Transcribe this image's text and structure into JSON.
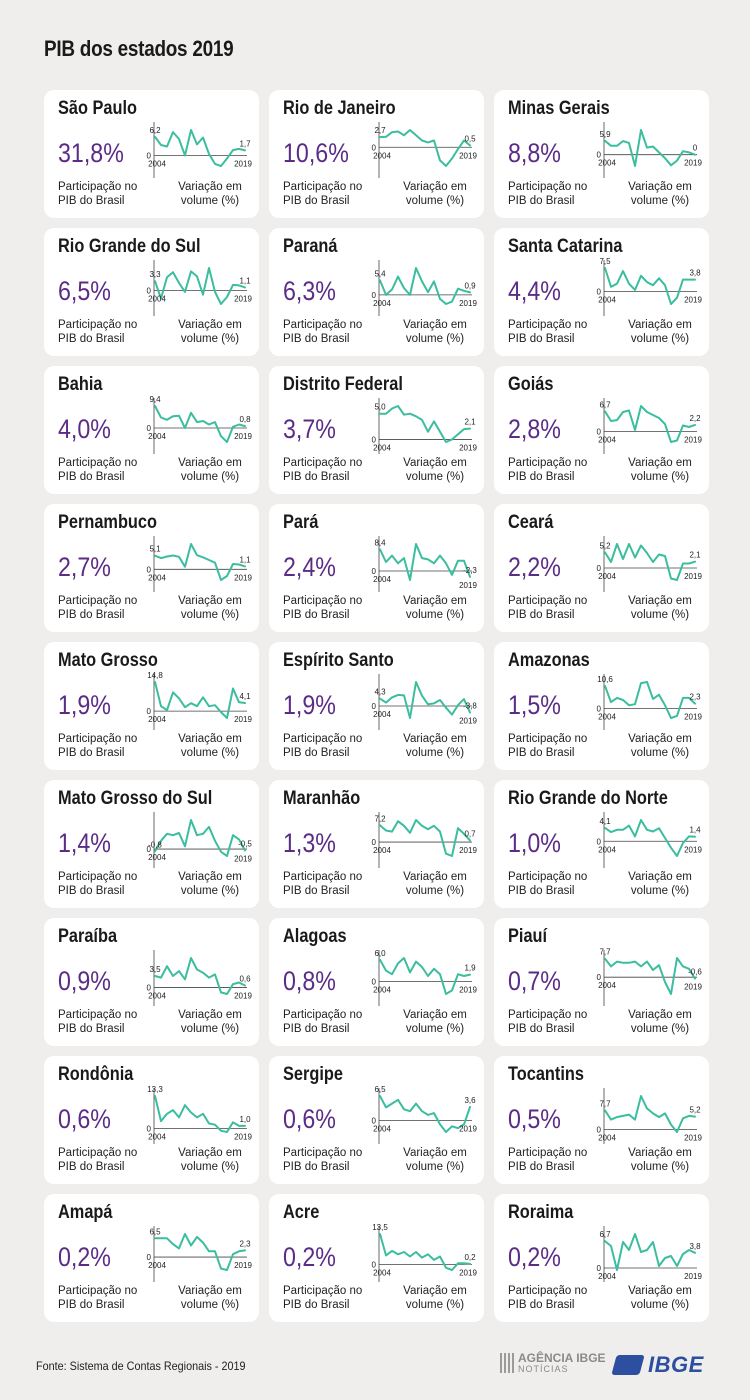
{
  "title": "PIB dos estados 2019",
  "labels": {
    "share_line1": "Participação no",
    "share_line2": "PIB do Brasil",
    "var_line1": "Variação em",
    "var_line2": "volume (%)",
    "year_start": "2004",
    "year_end": "2019",
    "zero": "0"
  },
  "colors": {
    "accent_purple": "#5b2c86",
    "line_teal": "#3bbd9f",
    "card_bg": "#ffffff",
    "page_bg": "#efeeec"
  },
  "footer": {
    "source": "Fonte: Sistema de Contas Regionais - 2019",
    "agencia_line1": "AGÊNCIA IBGE",
    "agencia_line2": "NOTÍCIAS",
    "ibge": "IBGE"
  },
  "chart_data": [
    {
      "type": "line",
      "state": "São Paulo",
      "share": "31,8%",
      "first_label": "6,2",
      "last_label": "1,7",
      "x": [
        2004,
        2005,
        2006,
        2007,
        2008,
        2009,
        2010,
        2011,
        2012,
        2013,
        2014,
        2015,
        2016,
        2017,
        2018,
        2019
      ],
      "values": [
        6.2,
        3.5,
        3.0,
        7.8,
        5.5,
        0.0,
        8.5,
        3.7,
        6.0,
        0.5,
        -2.8,
        -3.5,
        -1.0,
        1.8,
        2.2,
        1.7
      ]
    },
    {
      "type": "line",
      "state": "Rio de Janeiro",
      "share": "10,6%",
      "first_label": "2,7",
      "last_label": "0,5",
      "x": [
        2004,
        2005,
        2006,
        2007,
        2008,
        2009,
        2010,
        2011,
        2012,
        2013,
        2014,
        2015,
        2016,
        2017,
        2018,
        2019
      ],
      "values": [
        2.7,
        2.8,
        4.0,
        4.2,
        3.2,
        4.6,
        3.2,
        1.8,
        1.3,
        1.8,
        -3.5,
        -5.0,
        -3.0,
        -0.5,
        1.8,
        0.5
      ]
    },
    {
      "type": "line",
      "state": "Minas Gerais",
      "share": "8,8%",
      "first_label": "5,9",
      "last_label": "0",
      "x": [
        2004,
        2005,
        2006,
        2007,
        2008,
        2009,
        2010,
        2011,
        2012,
        2013,
        2014,
        2015,
        2016,
        2017,
        2018,
        2019
      ],
      "values": [
        5.9,
        3.8,
        3.8,
        5.8,
        5.0,
        -4.8,
        10.5,
        3.0,
        3.5,
        1.0,
        -1.5,
        -4.5,
        -2.5,
        1.5,
        1.0,
        0.0
      ]
    },
    {
      "type": "line",
      "state": "Rio Grande do Sul",
      "share": "6,5%",
      "first_label": "3,3",
      "last_label": "1,1",
      "x": [
        2004,
        2005,
        2006,
        2007,
        2008,
        2009,
        2010,
        2011,
        2012,
        2013,
        2014,
        2015,
        2016,
        2017,
        2018,
        2019
      ],
      "values": [
        3.3,
        -2.8,
        4.7,
        6.5,
        2.7,
        -0.5,
        6.8,
        5.0,
        -1.5,
        8.0,
        -0.5,
        -4.8,
        -2.3,
        2.0,
        1.8,
        1.1
      ]
    },
    {
      "type": "line",
      "state": "Paraná",
      "share": "6,3%",
      "first_label": "5,4",
      "last_label": "0,9",
      "x": [
        2004,
        2005,
        2006,
        2007,
        2008,
        2009,
        2010,
        2011,
        2012,
        2013,
        2014,
        2015,
        2016,
        2017,
        2018,
        2019
      ],
      "values": [
        5.4,
        0.0,
        2.0,
        6.8,
        2.5,
        0.0,
        10.0,
        5.0,
        1.0,
        5.0,
        -1.5,
        -3.4,
        -2.5,
        2.3,
        1.5,
        0.9
      ]
    },
    {
      "type": "line",
      "state": "Santa Catarina",
      "share": "4,4%",
      "first_label": "7,5",
      "last_label": "3,8",
      "x": [
        2004,
        2005,
        2006,
        2007,
        2008,
        2009,
        2010,
        2011,
        2012,
        2013,
        2014,
        2015,
        2016,
        2017,
        2018,
        2019
      ],
      "values": [
        7.5,
        1.5,
        2.5,
        6.5,
        2.5,
        0.5,
        5.0,
        3.0,
        2.0,
        4.2,
        2.0,
        -4.0,
        -2.0,
        3.8,
        3.8,
        3.8
      ]
    },
    {
      "type": "line",
      "state": "Bahia",
      "share": "4,0%",
      "first_label": "9,4",
      "last_label": "0,8",
      "x": [
        2004,
        2005,
        2006,
        2007,
        2008,
        2009,
        2010,
        2011,
        2012,
        2013,
        2014,
        2015,
        2016,
        2017,
        2018,
        2019
      ],
      "values": [
        9.4,
        4.5,
        3.5,
        5.0,
        5.2,
        0.0,
        6.5,
        2.5,
        3.0,
        1.5,
        2.5,
        -3.5,
        -6.0,
        0.5,
        1.5,
        0.8
      ]
    },
    {
      "type": "line",
      "state": "Distrito Federal",
      "share": "3,7%",
      "first_label": "5,0",
      "last_label": "2,1",
      "x": [
        2004,
        2005,
        2006,
        2007,
        2008,
        2009,
        2010,
        2011,
        2012,
        2013,
        2014,
        2015,
        2016,
        2017,
        2018,
        2019
      ],
      "values": [
        5.0,
        5.0,
        6.0,
        6.5,
        4.8,
        5.0,
        4.5,
        3.8,
        1.5,
        3.5,
        1.5,
        -0.5,
        0.0,
        1.0,
        2.0,
        2.1
      ]
    },
    {
      "type": "line",
      "state": "Goiás",
      "share": "2,8%",
      "first_label": "6,7",
      "last_label": "2,2",
      "x": [
        2004,
        2005,
        2006,
        2007,
        2008,
        2009,
        2010,
        2011,
        2012,
        2013,
        2014,
        2015,
        2016,
        2017,
        2018,
        2019
      ],
      "values": [
        6.7,
        3.5,
        3.8,
        6.5,
        7.0,
        0.5,
        8.5,
        6.5,
        5.5,
        4.5,
        2.5,
        -3.5,
        -3.0,
        2.0,
        1.5,
        2.2
      ]
    },
    {
      "type": "line",
      "state": "Pernambuco",
      "share": "2,7%",
      "first_label": "5,1",
      "last_label": "1,1",
      "x": [
        2004,
        2005,
        2006,
        2007,
        2008,
        2009,
        2010,
        2011,
        2012,
        2013,
        2014,
        2015,
        2016,
        2017,
        2018,
        2019
      ],
      "values": [
        5.1,
        4.2,
        4.8,
        5.2,
        4.7,
        1.0,
        9.5,
        5.3,
        4.5,
        3.5,
        2.5,
        -4.0,
        -2.5,
        2.0,
        1.8,
        1.1
      ]
    },
    {
      "type": "line",
      "state": "Pará",
      "share": "2,4%",
      "first_label": "8,4",
      "last_label": "-2,3",
      "x": [
        2004,
        2005,
        2006,
        2007,
        2008,
        2009,
        2010,
        2011,
        2012,
        2013,
        2014,
        2015,
        2016,
        2017,
        2018,
        2019
      ],
      "values": [
        8.4,
        3.5,
        6.0,
        3.0,
        5.0,
        -3.5,
        10.5,
        5.0,
        4.5,
        3.0,
        6.0,
        3.0,
        -1.5,
        4.0,
        4.0,
        -2.3
      ]
    },
    {
      "type": "line",
      "state": "Ceará",
      "share": "2,2%",
      "first_label": "5,2",
      "last_label": "2,1",
      "x": [
        2004,
        2005,
        2006,
        2007,
        2008,
        2009,
        2010,
        2011,
        2012,
        2013,
        2014,
        2015,
        2016,
        2017,
        2018,
        2019
      ],
      "values": [
        5.2,
        2.0,
        8.0,
        3.0,
        8.0,
        3.5,
        7.5,
        5.0,
        2.0,
        4.5,
        4.0,
        -3.5,
        -4.0,
        1.5,
        1.5,
        2.1
      ]
    },
    {
      "type": "line",
      "state": "Mato Grosso",
      "share": "1,9%",
      "first_label": "14,8",
      "last_label": "4,1",
      "x": [
        2004,
        2005,
        2006,
        2007,
        2008,
        2009,
        2010,
        2011,
        2012,
        2013,
        2014,
        2015,
        2016,
        2017,
        2018,
        2019
      ],
      "values": [
        14.8,
        2.5,
        0.5,
        9.5,
        6.5,
        2.0,
        4.0,
        2.5,
        7.0,
        2.5,
        3.0,
        -0.5,
        -3.5,
        11.5,
        4.5,
        4.1
      ]
    },
    {
      "type": "line",
      "state": "Espírito Santo",
      "share": "1,9%",
      "first_label": "4,3",
      "last_label": "-3,8",
      "x": [
        2004,
        2005,
        2006,
        2007,
        2008,
        2009,
        2010,
        2011,
        2012,
        2013,
        2014,
        2015,
        2016,
        2017,
        2018,
        2019
      ],
      "values": [
        4.3,
        2.0,
        5.0,
        6.5,
        6.2,
        -7.0,
        14.0,
        6.0,
        1.0,
        1.5,
        3.5,
        -1.0,
        -5.0,
        0.5,
        4.0,
        -3.8
      ]
    },
    {
      "type": "line",
      "state": "Amazonas",
      "share": "1,5%",
      "first_label": "10,6",
      "last_label": "2,3",
      "x": [
        2004,
        2005,
        2006,
        2007,
        2008,
        2009,
        2010,
        2011,
        2012,
        2013,
        2014,
        2015,
        2016,
        2017,
        2018,
        2019
      ],
      "values": [
        10.6,
        3.0,
        5.0,
        4.0,
        1.5,
        2.0,
        12.0,
        12.5,
        4.5,
        6.5,
        1.5,
        -4.5,
        -3.5,
        5.0,
        5.0,
        2.3
      ]
    },
    {
      "type": "line",
      "state": "Mato Grosso do Sul",
      "share": "1,4%",
      "first_label": "-0,8",
      "last_label": "-0,5",
      "x": [
        2004,
        2005,
        2006,
        2007,
        2008,
        2009,
        2010,
        2011,
        2012,
        2013,
        2014,
        2015,
        2016,
        2017,
        2018,
        2019
      ],
      "values": [
        -0.8,
        3.0,
        5.5,
        5.0,
        5.8,
        1.0,
        10.5,
        5.0,
        5.5,
        8.0,
        3.0,
        -1.0,
        -2.5,
        5.0,
        3.5,
        -0.5
      ]
    },
    {
      "type": "line",
      "state": "Maranhão",
      "share": "1,3%",
      "first_label": "7,2",
      "last_label": "0,7",
      "x": [
        2004,
        2005,
        2006,
        2007,
        2008,
        2009,
        2010,
        2011,
        2012,
        2013,
        2014,
        2015,
        2016,
        2017,
        2018,
        2019
      ],
      "values": [
        7.2,
        5.0,
        4.5,
        9.0,
        7.0,
        4.0,
        9.5,
        7.0,
        5.5,
        7.0,
        4.5,
        -5.0,
        -6.0,
        6.0,
        3.5,
        0.7
      ]
    },
    {
      "type": "line",
      "state": "Rio Grande do Norte",
      "share": "1,0%",
      "first_label": "4,1",
      "last_label": "1,4",
      "x": [
        2004,
        2005,
        2006,
        2007,
        2008,
        2009,
        2010,
        2011,
        2012,
        2013,
        2014,
        2015,
        2016,
        2017,
        2018,
        2019
      ],
      "values": [
        4.1,
        2.8,
        3.5,
        3.5,
        4.8,
        1.5,
        6.5,
        3.5,
        3.0,
        4.0,
        1.0,
        -2.0,
        -4.5,
        -0.5,
        1.5,
        1.4
      ]
    },
    {
      "type": "line",
      "state": "Paraíba",
      "share": "0,9%",
      "first_label": "3,5",
      "last_label": "0,6",
      "x": [
        2004,
        2005,
        2006,
        2007,
        2008,
        2009,
        2010,
        2011,
        2012,
        2013,
        2014,
        2015,
        2016,
        2017,
        2018,
        2019
      ],
      "values": [
        3.5,
        3.0,
        6.5,
        3.5,
        5.0,
        2.5,
        9.0,
        5.5,
        4.5,
        3.0,
        4.0,
        -1.5,
        -2.0,
        1.0,
        1.5,
        0.6
      ]
    },
    {
      "type": "line",
      "state": "Alagoas",
      "share": "0,8%",
      "first_label": "6,0",
      "last_label": "1,9",
      "x": [
        2004,
        2005,
        2006,
        2007,
        2008,
        2009,
        2010,
        2011,
        2012,
        2013,
        2014,
        2015,
        2016,
        2017,
        2018,
        2019
      ],
      "values": [
        6.0,
        3.0,
        2.0,
        5.0,
        6.5,
        2.5,
        5.5,
        4.0,
        1.5,
        3.5,
        2.0,
        -3.5,
        -2.5,
        2.0,
        1.5,
        1.9
      ]
    },
    {
      "type": "line",
      "state": "Piauí",
      "share": "0,7%",
      "first_label": "7,7",
      "last_label": "-0,6",
      "x": [
        2004,
        2005,
        2006,
        2007,
        2008,
        2009,
        2010,
        2011,
        2012,
        2013,
        2014,
        2015,
        2016,
        2017,
        2018,
        2019
      ],
      "values": [
        7.7,
        4.5,
        6.5,
        6.0,
        6.0,
        6.5,
        4.5,
        6.5,
        3.0,
        5.0,
        -2.0,
        -7.0,
        8.0,
        4.5,
        3.5,
        -0.6
      ]
    },
    {
      "type": "line",
      "state": "Rondônia",
      "share": "0,6%",
      "first_label": "13,3",
      "last_label": "1,0",
      "x": [
        2004,
        2005,
        2006,
        2007,
        2008,
        2009,
        2010,
        2011,
        2012,
        2013,
        2014,
        2015,
        2016,
        2017,
        2018,
        2019
      ],
      "values": [
        13.3,
        3.0,
        6.0,
        7.5,
        4.5,
        9.5,
        6.5,
        4.5,
        6.0,
        2.0,
        1.5,
        -1.0,
        -1.5,
        2.5,
        1.0,
        1.0
      ]
    },
    {
      "type": "line",
      "state": "Sergipe",
      "share": "0,6%",
      "first_label": "6,5",
      "last_label": "3,6",
      "x": [
        2004,
        2005,
        2006,
        2007,
        2008,
        2009,
        2010,
        2011,
        2012,
        2013,
        2014,
        2015,
        2016,
        2017,
        2018,
        2019
      ],
      "values": [
        6.5,
        3.5,
        4.5,
        5.5,
        3.0,
        2.5,
        4.5,
        2.5,
        1.5,
        2.0,
        -1.0,
        -3.0,
        -1.5,
        -2.0,
        -1.0,
        3.6
      ]
    },
    {
      "type": "line",
      "state": "Tocantins",
      "share": "0,5%",
      "first_label": "7,7",
      "last_label": "5,2",
      "x": [
        2004,
        2005,
        2006,
        2007,
        2008,
        2009,
        2010,
        2011,
        2012,
        2013,
        2014,
        2015,
        2016,
        2017,
        2018,
        2019
      ],
      "values": [
        7.7,
        4.0,
        5.0,
        5.5,
        6.0,
        4.0,
        13.5,
        8.5,
        6.5,
        5.0,
        6.5,
        2.0,
        -1.0,
        4.5,
        5.5,
        5.2
      ]
    },
    {
      "type": "line",
      "state": "Amapá",
      "share": "0,2%",
      "first_label": "6,5",
      "last_label": "2,3",
      "x": [
        2004,
        2005,
        2006,
        2007,
        2008,
        2009,
        2010,
        2011,
        2012,
        2013,
        2014,
        2015,
        2016,
        2017,
        2018,
        2019
      ],
      "values": [
        6.5,
        6.5,
        6.5,
        4.5,
        3.0,
        8.0,
        4.0,
        7.0,
        5.0,
        2.0,
        2.0,
        -4.0,
        -4.5,
        1.0,
        2.0,
        2.3
      ]
    },
    {
      "type": "line",
      "state": "Acre",
      "share": "0,2%",
      "first_label": "13,5",
      "last_label": "0,2",
      "x": [
        2004,
        2005,
        2006,
        2007,
        2008,
        2009,
        2010,
        2011,
        2012,
        2013,
        2014,
        2015,
        2016,
        2017,
        2018,
        2019
      ],
      "values": [
        13.5,
        4.0,
        6.0,
        4.5,
        5.5,
        3.5,
        5.5,
        3.0,
        4.5,
        2.0,
        3.5,
        -1.5,
        -2.5,
        0.5,
        0.5,
        0.2
      ]
    },
    {
      "type": "line",
      "state": "Roraima",
      "share": "0,2%",
      "first_label": "6,7",
      "last_label": "3,8",
      "x": [
        2004,
        2005,
        2006,
        2007,
        2008,
        2009,
        2010,
        2011,
        2012,
        2013,
        2014,
        2015,
        2016,
        2017,
        2018,
        2019
      ],
      "values": [
        6.7,
        5.5,
        -0.5,
        6.5,
        4.5,
        8.5,
        4.0,
        4.5,
        6.5,
        0.5,
        2.5,
        3.0,
        0.5,
        3.5,
        4.5,
        3.8
      ]
    }
  ]
}
